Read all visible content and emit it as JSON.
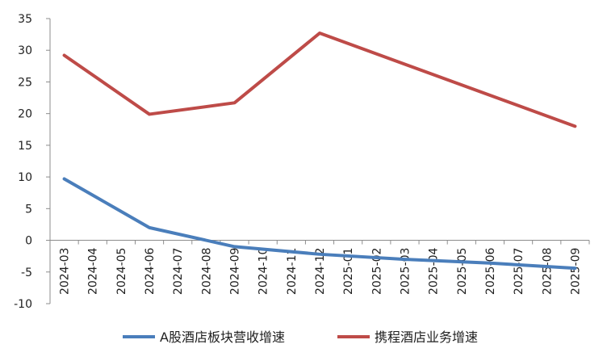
{
  "chart_data": {
    "type": "line",
    "title": "",
    "xlabel": "",
    "ylabel": "",
    "ylim": [
      -10,
      35
    ],
    "yticks": [
      35,
      30,
      25,
      20,
      15,
      10,
      5,
      0,
      -5,
      -10
    ],
    "grid": false,
    "legend_position": "bottom",
    "x": [
      "2024-03",
      "2024-04",
      "2024-05",
      "2024-06",
      "2024-07",
      "2024-08",
      "2024-09",
      "2024-10",
      "2024-11",
      "2024-12",
      "2025-01",
      "2025-02",
      "2025-03",
      "2025-04",
      "2025-05",
      "2025-06",
      "2025-07",
      "2025-08",
      "2025-09"
    ],
    "series": [
      {
        "name": "A股酒店板块营收增速",
        "color": "#4a7ebb",
        "points": [
          {
            "x": "2024-03",
            "y": 9.7
          },
          {
            "x": "2024-06",
            "y": 2.0
          },
          {
            "x": "2024-09",
            "y": -1.0
          },
          {
            "x": "2024-12",
            "y": -2.2
          },
          {
            "x": "2025-03",
            "y": -3.0
          },
          {
            "x": "2025-06",
            "y": -3.6
          },
          {
            "x": "2025-09",
            "y": -4.4
          }
        ]
      },
      {
        "name": "携程酒店业务增速",
        "color": "#be4b48",
        "points": [
          {
            "x": "2024-03",
            "y": 29.2
          },
          {
            "x": "2024-06",
            "y": 19.9
          },
          {
            "x": "2024-09",
            "y": 21.7
          },
          {
            "x": "2024-12",
            "y": 32.7
          },
          {
            "x": "2025-09",
            "y": 18.0
          }
        ]
      }
    ]
  }
}
